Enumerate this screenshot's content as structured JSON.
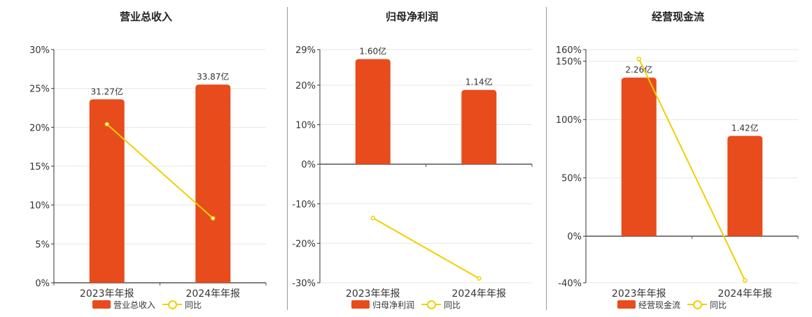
{
  "colors": {
    "bar": "#E84C1C",
    "line": "#F2CF00",
    "grid": "#E6E6E6",
    "axis": "#333333",
    "text": "#333333"
  },
  "chart_data": [
    {
      "type": "bar",
      "title": "营业总收入",
      "categories": [
        "2023年年报",
        "2024年年报"
      ],
      "bar_labels": [
        "31.27亿",
        "33.87亿"
      ],
      "series": [
        {
          "name": "营业总收入",
          "type": "bar",
          "values": [
            23.6,
            25.5
          ]
        },
        {
          "name": "同比",
          "type": "line",
          "values": [
            20.4,
            8.3
          ]
        }
      ],
      "y_ticks": [
        "30%",
        "25%",
        "20%",
        "15%",
        "10%",
        "5%",
        "0%"
      ],
      "ylim": [
        0,
        30
      ]
    },
    {
      "type": "bar",
      "title": "归母净利润",
      "categories": [
        "2023年年报",
        "2024年年报"
      ],
      "bar_labels": [
        "1.60亿",
        "1.14亿"
      ],
      "series": [
        {
          "name": "归母净利润",
          "type": "bar",
          "values": [
            26.6,
            18.8
          ]
        },
        {
          "name": "同比",
          "type": "line",
          "values": [
            -13.6,
            -28.9
          ]
        }
      ],
      "y_ticks": [
        "29%",
        "20%",
        "10%",
        "0%",
        "-10%",
        "-20%",
        "-30%"
      ],
      "ylim": [
        -30,
        29
      ]
    },
    {
      "type": "bar",
      "title": "经营现金流",
      "categories": [
        "2023年年报",
        "2024年年报"
      ],
      "bar_labels": [
        "2.26亿",
        "1.42亿"
      ],
      "series": [
        {
          "name": "经营现金流",
          "type": "bar",
          "values": [
            136,
            86
          ]
        },
        {
          "name": "同比",
          "type": "line",
          "values": [
            152,
            -38
          ]
        }
      ],
      "y_ticks": [
        "160%",
        "150%",
        "100%",
        "50%",
        "0%",
        "-40%"
      ],
      "ylim": [
        -40,
        160
      ]
    }
  ]
}
